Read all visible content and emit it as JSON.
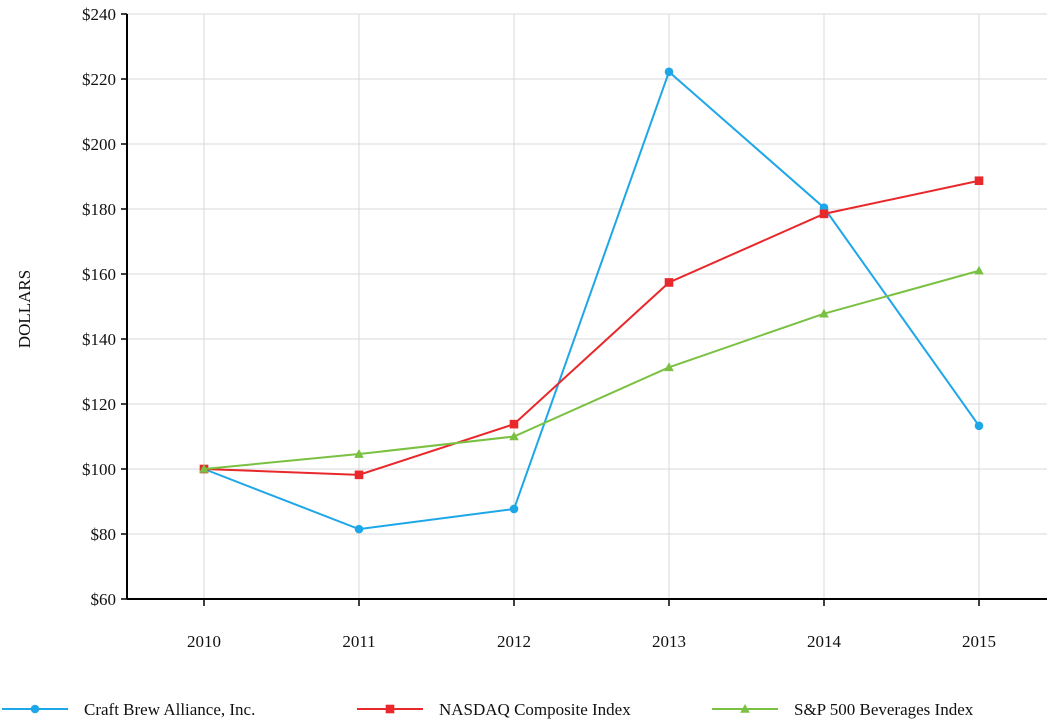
{
  "chart_data": {
    "type": "line",
    "title": "",
    "xlabel": "",
    "ylabel": "DOLLARS",
    "categories": [
      "2010",
      "2011",
      "2012",
      "2013",
      "2014",
      "2015"
    ],
    "ylim": [
      60,
      240
    ],
    "yticks": [
      60,
      80,
      100,
      120,
      140,
      160,
      180,
      200,
      220,
      240
    ],
    "ytick_labels": [
      "$60",
      "$80",
      "$100",
      "$120",
      "$140",
      "$160",
      "$180",
      "$200",
      "$220",
      "$240"
    ],
    "grid": true,
    "legend_position": "bottom",
    "series": [
      {
        "name": "Craft Brew Alliance, Inc.",
        "color": "#1ea7e8",
        "marker": "circle",
        "values": [
          100,
          81.5,
          87.7,
          222.2,
          180.4,
          113.3
        ]
      },
      {
        "name": "NASDAQ Composite Index",
        "color": "#e8282b",
        "marker": "square",
        "values": [
          100,
          98.2,
          113.8,
          157.4,
          178.5,
          188.7
        ]
      },
      {
        "name": "S&P 500 Beverages Index",
        "color": "#7ac143",
        "marker": "triangle",
        "values": [
          100,
          104.6,
          110.0,
          131.3,
          147.8,
          161.0
        ]
      }
    ]
  }
}
